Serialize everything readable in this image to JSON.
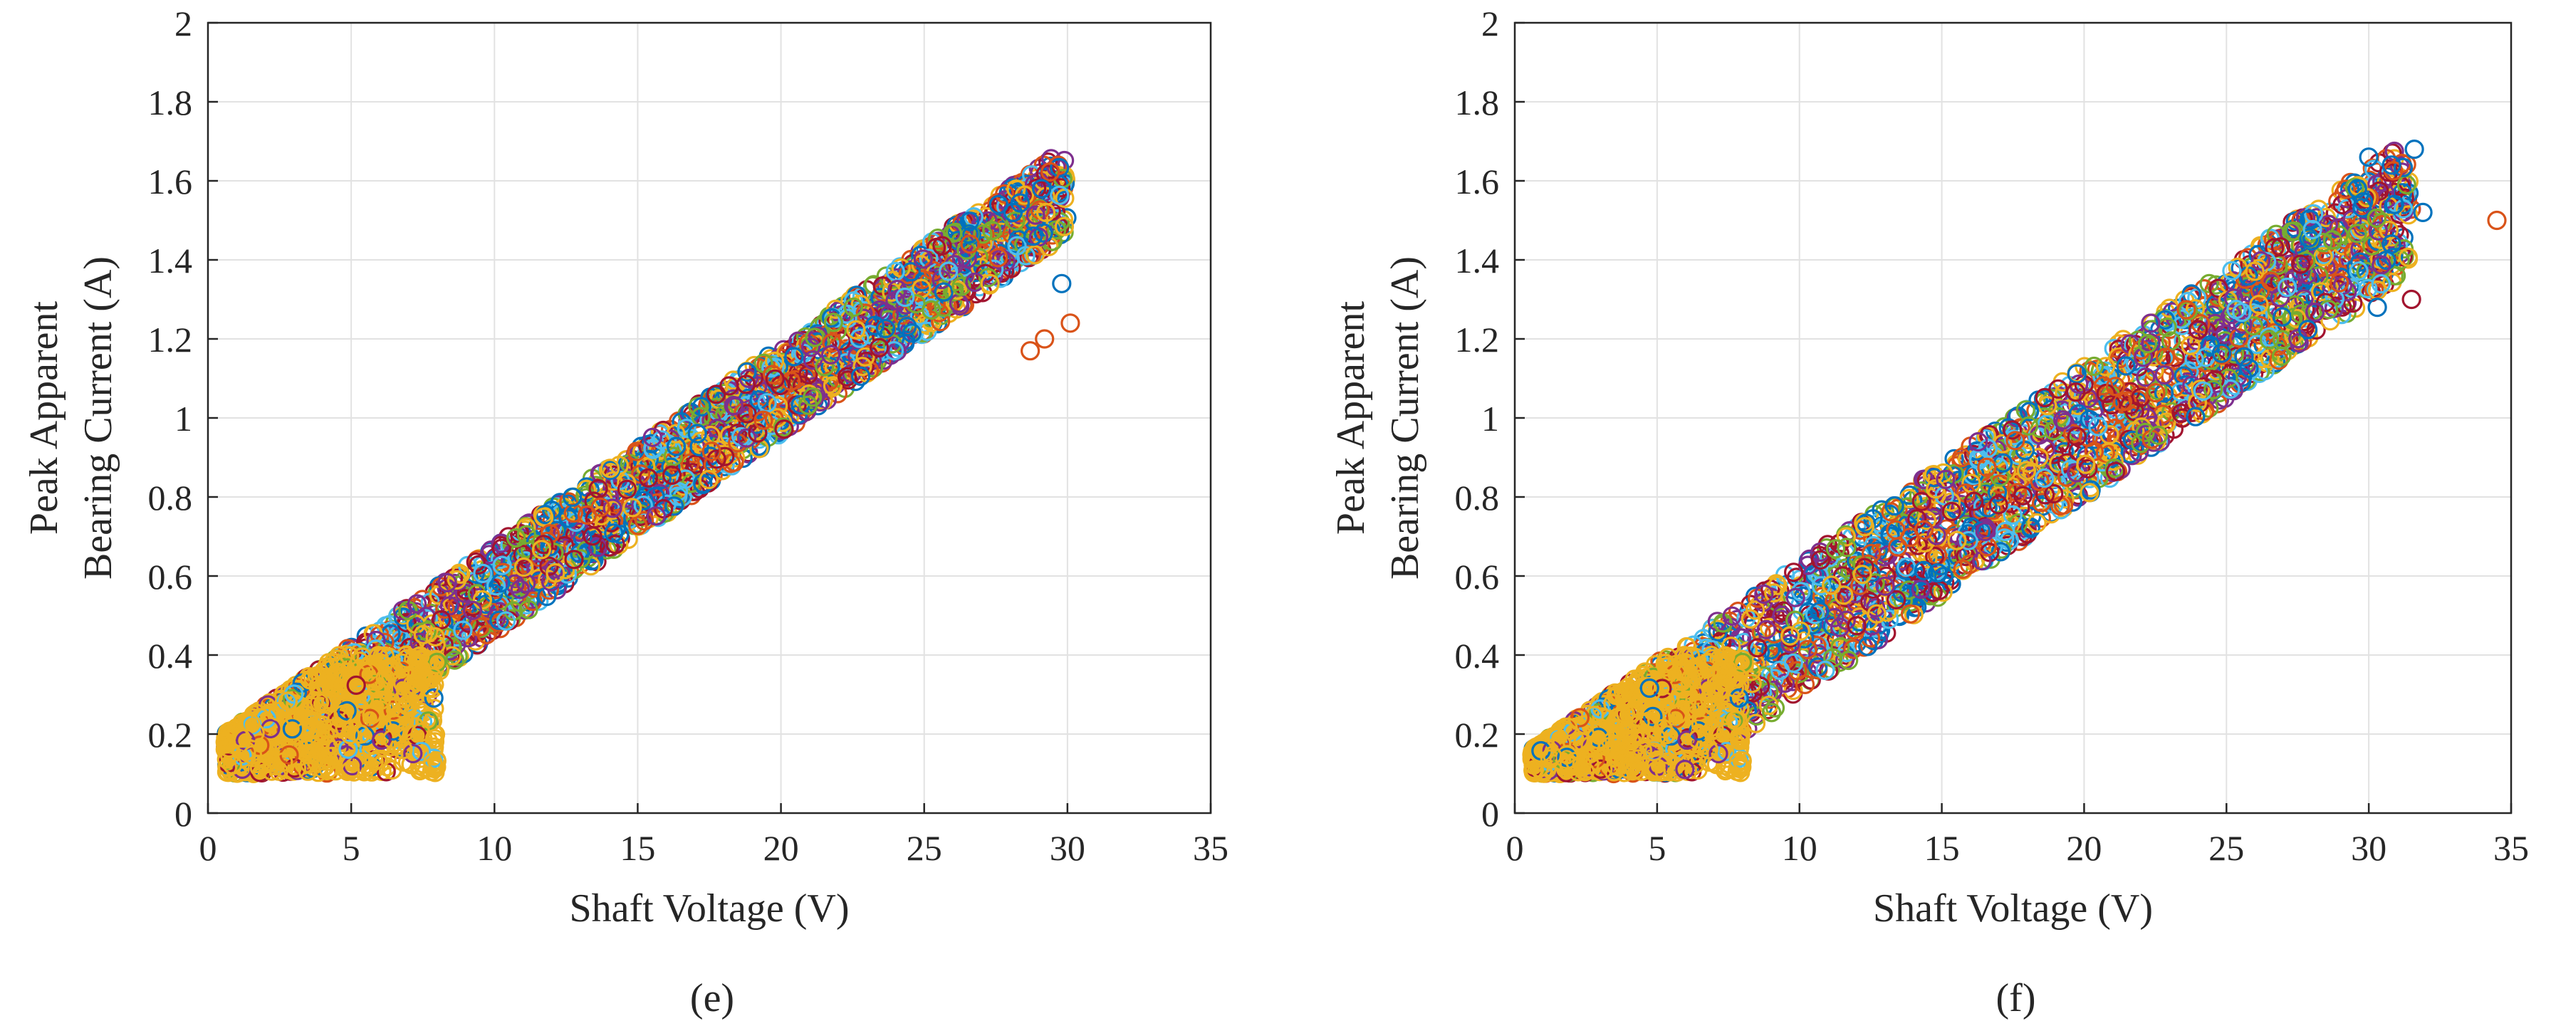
{
  "colors": [
    "#0072BD",
    "#D95319",
    "#EDB120",
    "#7E2F8E",
    "#77AC30",
    "#4DBEEE",
    "#A2142F"
  ],
  "chart_data": [
    {
      "type": "scatter",
      "panel": "(e)",
      "xlabel": "Shaft Voltage (V)",
      "ylabel_lines": [
        "Peak Apparent",
        "Bearing Current (A)"
      ],
      "xlim": [
        0,
        35
      ],
      "ylim": [
        0,
        2
      ],
      "xticks": [
        "0",
        "5",
        "10",
        "15",
        "20",
        "25",
        "30",
        "35"
      ],
      "yticks": [
        "0",
        "0.2",
        "0.4",
        "0.6",
        "0.8",
        "1",
        "1.2",
        "1.4",
        "1.6",
        "1.8",
        "2"
      ],
      "grid": true,
      "marker": "circle",
      "band": {
        "slope": 0.0505,
        "intercept_low": -0.05,
        "intercept_high": 0.17,
        "x_min": 0.6,
        "x_max": 30.0,
        "y_floor": 0.1
      },
      "dense_low_region": {
        "x_max": 8.0,
        "y_max": 0.4,
        "color": "#EDB120"
      },
      "outliers": [
        {
          "x": 29.1,
          "y": 1.58,
          "series": 0
        },
        {
          "x": 28.1,
          "y": 1.52,
          "series": 0
        },
        {
          "x": 27.6,
          "y": 1.54,
          "series": 0
        },
        {
          "x": 28.8,
          "y": 1.46,
          "series": 0
        },
        {
          "x": 30.1,
          "y": 1.24,
          "series": 1
        },
        {
          "x": 29.8,
          "y": 1.34,
          "series": 0
        },
        {
          "x": 29.2,
          "y": 1.2,
          "series": 1
        },
        {
          "x": 28.7,
          "y": 1.17,
          "series": 1
        },
        {
          "x": 27.3,
          "y": 1.34,
          "series": 2
        },
        {
          "x": 26.6,
          "y": 1.44,
          "series": 1
        }
      ]
    },
    {
      "type": "scatter",
      "panel": "(f)",
      "xlabel": "Shaft Voltage (V)",
      "ylabel_lines": [
        "Peak Apparent",
        "Bearing Current (A)"
      ],
      "xlim": [
        0,
        35
      ],
      "ylim": [
        0,
        2
      ],
      "xticks": [
        "0",
        "5",
        "10",
        "15",
        "20",
        "25",
        "30",
        "35"
      ],
      "yticks": [
        "0",
        "0.2",
        "0.4",
        "0.6",
        "0.8",
        "1",
        "1.2",
        "1.4",
        "1.6",
        "1.8",
        "2"
      ],
      "grid": true,
      "marker": "circle",
      "band": {
        "slope": 0.05,
        "intercept_low": -0.2,
        "intercept_high": 0.13,
        "x_min": 0.6,
        "x_max": 31.5,
        "y_floor": 0.1
      },
      "dense_low_region": {
        "x_max": 8.0,
        "y_max": 0.4,
        "color": "#EDB120"
      },
      "outliers": [
        {
          "x": 34.5,
          "y": 1.5,
          "series": 1
        },
        {
          "x": 31.6,
          "y": 1.68,
          "series": 0
        },
        {
          "x": 30.8,
          "y": 1.64,
          "series": 0
        },
        {
          "x": 30.0,
          "y": 1.66,
          "series": 0
        },
        {
          "x": 31.9,
          "y": 1.52,
          "series": 0
        },
        {
          "x": 30.9,
          "y": 1.54,
          "series": 0
        },
        {
          "x": 31.5,
          "y": 1.3,
          "series": 6
        },
        {
          "x": 30.3,
          "y": 1.28,
          "series": 0
        },
        {
          "x": 29.6,
          "y": 1.58,
          "series": 0
        },
        {
          "x": 30.8,
          "y": 1.44,
          "series": 0
        }
      ]
    }
  ]
}
